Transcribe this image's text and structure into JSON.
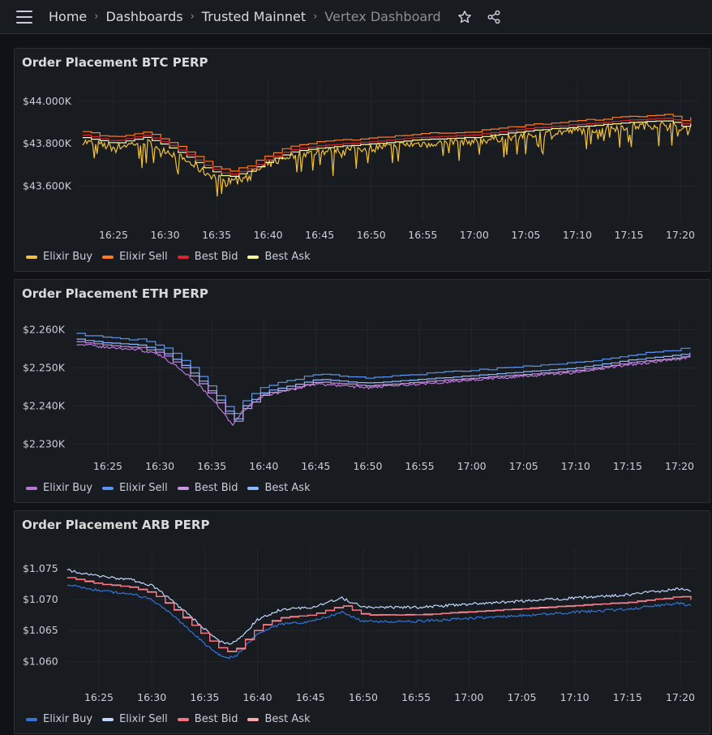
{
  "breadcrumbs": [
    "Home",
    "Dashboards",
    "Trusted Mainnet",
    "Vertex Dashboard"
  ],
  "icons": {
    "menu": "hamburger-icon",
    "star": "star-icon",
    "share": "share-icon"
  },
  "x_ticks": [
    "16:25",
    "16:30",
    "16:35",
    "16:40",
    "16:45",
    "16:50",
    "16:55",
    "17:00",
    "17:05",
    "17:10",
    "17:15",
    "17:20"
  ],
  "panels": [
    {
      "title": "Order Placement BTC PERP",
      "chart_data": {
        "type": "line",
        "y_ticks": [
          "$44.000K",
          "$43.800K",
          "$43.600K"
        ],
        "ylim": [
          43460,
          44080
        ],
        "series": [
          {
            "name": "Elixir Buy",
            "color": "#f2c23d"
          },
          {
            "name": "Elixir Sell",
            "color": "#ff7a21"
          },
          {
            "name": "Best Bid",
            "color": "#d7262c"
          },
          {
            "name": "Best Ask",
            "color": "#fff899"
          }
        ],
        "anchors_x": [
          "16:22",
          "16:25",
          "16:28",
          "16:30",
          "16:32",
          "16:34",
          "16:36",
          "16:38",
          "16:40",
          "16:42",
          "16:45",
          "16:50",
          "16:55",
          "17:00",
          "17:05",
          "17:10",
          "17:15",
          "17:19",
          "17:20",
          "17:21"
        ],
        "anchors_y": [
          43830,
          43800,
          43830,
          43790,
          43740,
          43680,
          43640,
          43670,
          43720,
          43760,
          43780,
          43800,
          43820,
          43830,
          43860,
          43880,
          43900,
          43910,
          43880,
          43900
        ]
      }
    },
    {
      "title": "Order Placement ETH PERP",
      "chart_data": {
        "type": "line",
        "y_ticks": [
          "$2.260K",
          "$2.250K",
          "$2.240K",
          "$2.230K"
        ],
        "ylim": [
          2228,
          2262
        ],
        "series": [
          {
            "name": "Elixir Buy",
            "color": "#b877d9"
          },
          {
            "name": "Elixir Sell",
            "color": "#5794f2"
          },
          {
            "name": "Best Bid",
            "color": "#ca95e5"
          },
          {
            "name": "Best Ask",
            "color": "#8ab8ff"
          }
        ],
        "anchors_x": [
          "16:22",
          "16:25",
          "16:28",
          "16:30",
          "16:32",
          "16:34",
          "16:36",
          "16:37",
          "16:38",
          "16:40",
          "16:42",
          "16:45",
          "16:50",
          "16:55",
          "17:00",
          "17:05",
          "17:10",
          "17:15",
          "17:20",
          "17:21"
        ],
        "anchors_y": [
          2257.5,
          2256.5,
          2256,
          2254.5,
          2251,
          2246,
          2240,
          2236,
          2240,
          2244,
          2245,
          2247,
          2246,
          2247,
          2248,
          2249,
          2250,
          2252,
          2253.5,
          2254
        ]
      }
    },
    {
      "title": "Order Placement ARB PERP",
      "chart_data": {
        "type": "line",
        "y_ticks": [
          "$1.075",
          "$1.070",
          "$1.065",
          "$1.060"
        ],
        "ylim": [
          1.0565,
          1.0775
        ],
        "series": [
          {
            "name": "Elixir Buy",
            "color": "#3274d9"
          },
          {
            "name": "Elixir Sell",
            "color": "#c0d8ff"
          },
          {
            "name": "Best Bid",
            "color": "#ff7383"
          },
          {
            "name": "Best Ask",
            "color": "#ffa6b0"
          }
        ],
        "anchors_x": [
          "16:22",
          "16:25",
          "16:28",
          "16:30",
          "16:32",
          "16:34",
          "16:36",
          "16:37",
          "16:38",
          "16:40",
          "16:42",
          "16:45",
          "16:48",
          "16:50",
          "16:55",
          "17:00",
          "17:05",
          "17:10",
          "17:15",
          "17:20",
          "17:21"
        ],
        "anchors_y": [
          1.0735,
          1.0725,
          1.072,
          1.071,
          1.0685,
          1.0655,
          1.0625,
          1.0615,
          1.062,
          1.0655,
          1.067,
          1.0675,
          1.069,
          1.0675,
          1.0675,
          1.068,
          1.0685,
          1.069,
          1.0695,
          1.0705,
          1.07
        ]
      }
    }
  ]
}
